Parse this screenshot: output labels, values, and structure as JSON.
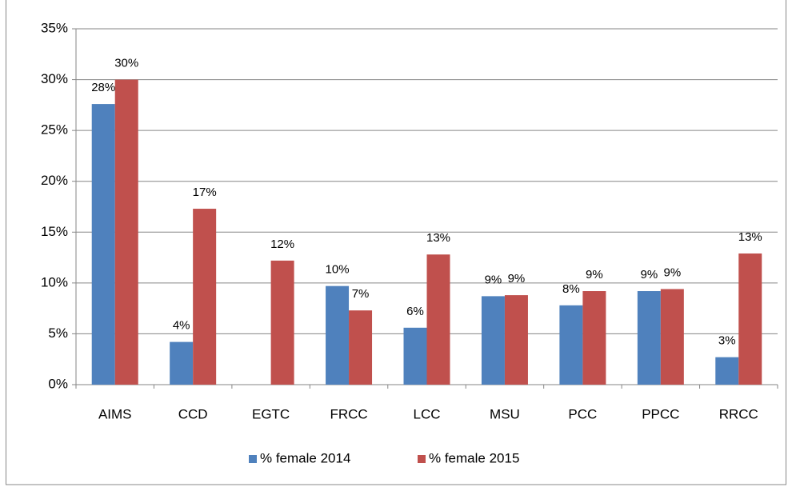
{
  "chart_data": {
    "type": "bar",
    "categories": [
      "AIMS",
      "CCD",
      "EGTC",
      "FRCC",
      "LCC",
      "MSU",
      "PCC",
      "PPCC",
      "RRCC"
    ],
    "series": [
      {
        "name": "% female 2014",
        "color": "#4f81bd",
        "values": [
          27.6,
          4.2,
          null,
          9.7,
          5.6,
          8.7,
          7.8,
          9.2,
          2.7
        ],
        "value_labels": [
          "28%",
          "4%",
          null,
          "10%",
          "6%",
          "9%",
          "8%",
          "9%",
          "3%"
        ]
      },
      {
        "name": "% female 2015",
        "color": "#c0504d",
        "values": [
          30.0,
          17.3,
          12.2,
          7.3,
          12.8,
          8.8,
          9.2,
          9.4,
          12.9
        ],
        "value_labels": [
          "30%",
          "17%",
          "12%",
          "7%",
          "13%",
          "9%",
          "9%",
          "9%",
          "13%"
        ]
      }
    ],
    "ylim": [
      0,
      35
    ],
    "yticks": [
      {
        "value": 0,
        "label": "0%"
      },
      {
        "value": 5,
        "label": "5%"
      },
      {
        "value": 10,
        "label": "10%"
      },
      {
        "value": 15,
        "label": "15%"
      },
      {
        "value": 20,
        "label": "20%"
      },
      {
        "value": 25,
        "label": "25%"
      },
      {
        "value": 30,
        "label": "30%"
      },
      {
        "value": 35,
        "label": "35%"
      }
    ],
    "grid": true,
    "legend": "bottom"
  }
}
